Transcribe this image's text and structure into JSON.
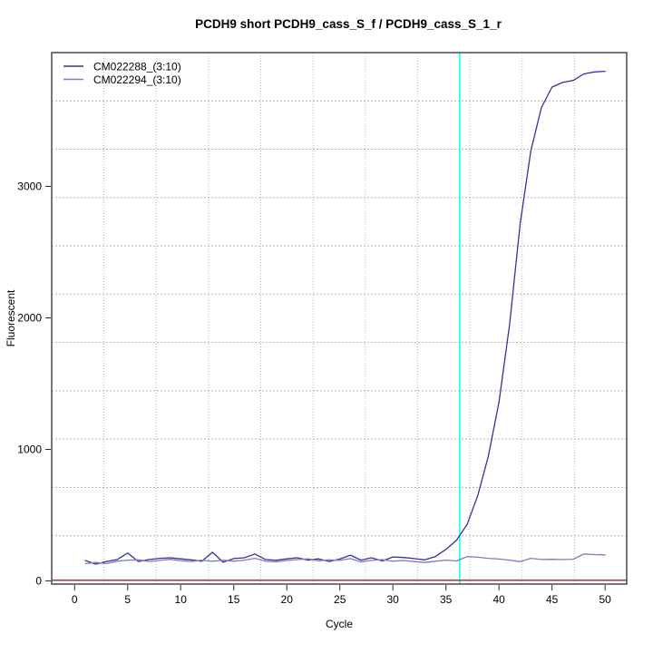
{
  "page": {
    "background": "#ffffff"
  },
  "chart_data": {
    "type": "line",
    "title": "PCDH9 short PCDH9_cass_S_f / PCDH9_cass_S_1_r",
    "xlabel": "Cycle",
    "ylabel": "Fluorescent",
    "x_ticks": [
      0,
      5,
      10,
      15,
      20,
      25,
      30,
      35,
      40,
      45,
      50
    ],
    "y_ticks": [
      0,
      1000,
      2000,
      3000
    ],
    "xlim": [
      -2.16,
      52.04
    ],
    "ylim": [
      -24,
      4017
    ],
    "grid": {
      "divisions": 11,
      "color": "#b4b4b4",
      "style": "dotted",
      "on": true
    },
    "legend": {
      "position": "top-left",
      "boxed": false,
      "items": [
        "CM022288_(3:10)",
        "CM022294_(3:10)"
      ]
    },
    "x": [
      1,
      2,
      3,
      4,
      5,
      6,
      7,
      8,
      9,
      10,
      11,
      12,
      13,
      14,
      15,
      16,
      17,
      18,
      19,
      20,
      21,
      22,
      23,
      24,
      25,
      26,
      27,
      28,
      29,
      30,
      31,
      32,
      33,
      34,
      35,
      36,
      37,
      38,
      39,
      40,
      41,
      42,
      43,
      44,
      45,
      46,
      47,
      48,
      49,
      50
    ],
    "series": [
      {
        "name": "CM022288_(3:10)",
        "color": "#33339c",
        "values": [
          155,
          128,
          148,
          162,
          212,
          148,
          162,
          172,
          176,
          168,
          160,
          150,
          218,
          142,
          170,
          176,
          205,
          163,
          157,
          168,
          176,
          158,
          168,
          148,
          166,
          196,
          158,
          176,
          152,
          182,
          178,
          170,
          160,
          185,
          240,
          310,
          430,
          650,
          950,
          1360,
          1950,
          2720,
          3270,
          3600,
          3755,
          3790,
          3805,
          3855,
          3870,
          3875
        ]
      },
      {
        "name": "CM022294_(3:10)",
        "color": "#7b7bc8",
        "values": [
          132,
          140,
          132,
          150,
          158,
          160,
          148,
          156,
          164,
          154,
          148,
          158,
          150,
          158,
          150,
          158,
          172,
          150,
          145,
          155,
          162,
          168,
          153,
          160,
          156,
          170,
          145,
          156,
          162,
          150,
          155,
          147,
          140,
          150,
          158,
          152,
          185,
          180,
          172,
          166,
          158,
          147,
          172,
          163,
          164,
          162,
          165,
          205,
          200,
          198
        ]
      }
    ],
    "threshold_line": {
      "value": 5,
      "color": "#a02020"
    },
    "marker_line": {
      "cycle": 36.3,
      "color": "#00ffff"
    },
    "colors": {
      "box_border": "#4a4a4a",
      "tick": "#2a2a2a",
      "text": "#000000"
    }
  }
}
